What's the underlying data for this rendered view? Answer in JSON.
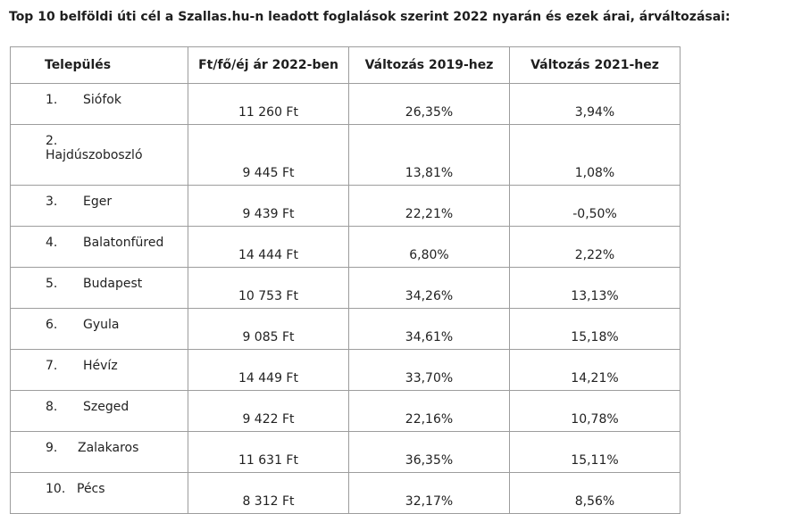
{
  "title": "Top 10 belföldi úti cél a Szallas.hu-n leadott foglalások szerint 2022 nyarán és ezek árai, árváltozásai:",
  "table": {
    "headers": [
      "Település",
      "Ft/fő/éj ár 2022-ben",
      "Változás 2019-hez",
      "Változás 2021-hez"
    ],
    "rows": [
      {
        "rank": "1.",
        "city": "Siófok",
        "price": "11 260 Ft",
        "change_2019": "26,35%",
        "change_2021": "3,94%"
      },
      {
        "rank": "2.",
        "city": "Hajdúszoboszló",
        "price": "9 445 Ft",
        "change_2019": "13,81%",
        "change_2021": "1,08%"
      },
      {
        "rank": "3.",
        "city": "Eger",
        "price": "9 439 Ft",
        "change_2019": "22,21%",
        "change_2021": "-0,50%"
      },
      {
        "rank": "4.",
        "city": "Balatonfüred",
        "price": "14 444 Ft",
        "change_2019": "6,80%",
        "change_2021": "2,22%"
      },
      {
        "rank": "5.",
        "city": "Budapest",
        "price": "10 753 Ft",
        "change_2019": "34,26%",
        "change_2021": "13,13%"
      },
      {
        "rank": "6.",
        "city": "Gyula",
        "price": "9 085 Ft",
        "change_2019": "34,61%",
        "change_2021": "15,18%"
      },
      {
        "rank": "7.",
        "city": "Hévíz",
        "price": "14 449 Ft",
        "change_2019": "33,70%",
        "change_2021": "14,21%"
      },
      {
        "rank": "8.",
        "city": "Szeged",
        "price": "9 422 Ft",
        "change_2019": "22,16%",
        "change_2021": "10,78%"
      },
      {
        "rank": "9.",
        "city": "Zalakaros",
        "price": "11 631 Ft",
        "change_2019": "36,35%",
        "change_2021": "15,11%"
      },
      {
        "rank": "10.",
        "city": "Pécs",
        "price": "8 312 Ft",
        "change_2019": "32,17%",
        "change_2021": "8,56%"
      }
    ]
  }
}
